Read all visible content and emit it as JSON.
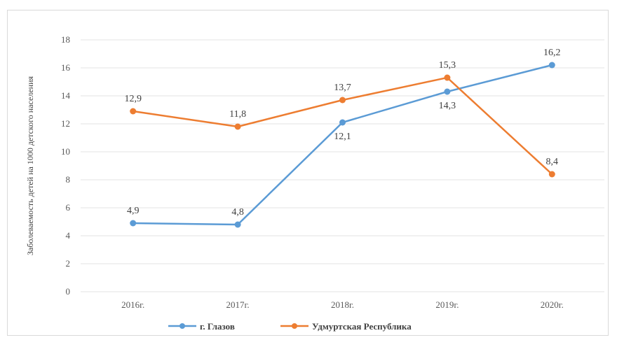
{
  "chart_data": {
    "type": "line",
    "categories": [
      "2016г.",
      "2017г.",
      "2018г.",
      "2019г.",
      "2020г."
    ],
    "series": [
      {
        "name": "г. Глазов",
        "color": "#5b9bd5",
        "values": [
          4.9,
          4.8,
          12.1,
          14.3,
          16.2
        ],
        "labels": [
          "4,9",
          "4,8",
          "12,1",
          "14,3",
          "16,2"
        ]
      },
      {
        "name": "Удмуртская Республика",
        "color": "#ed7d31",
        "values": [
          12.9,
          11.8,
          13.7,
          15.3,
          8.4
        ],
        "labels": [
          "12,9",
          "11,8",
          "13,7",
          "15,3",
          "8,4"
        ]
      }
    ],
    "ylabel": "Заболеваемость детей на 1000 детского населения",
    "ylim": [
      0,
      18
    ],
    "yticks": [
      0,
      2,
      4,
      6,
      8,
      10,
      12,
      14,
      16,
      18
    ],
    "grid": true,
    "legend": "bottom"
  }
}
